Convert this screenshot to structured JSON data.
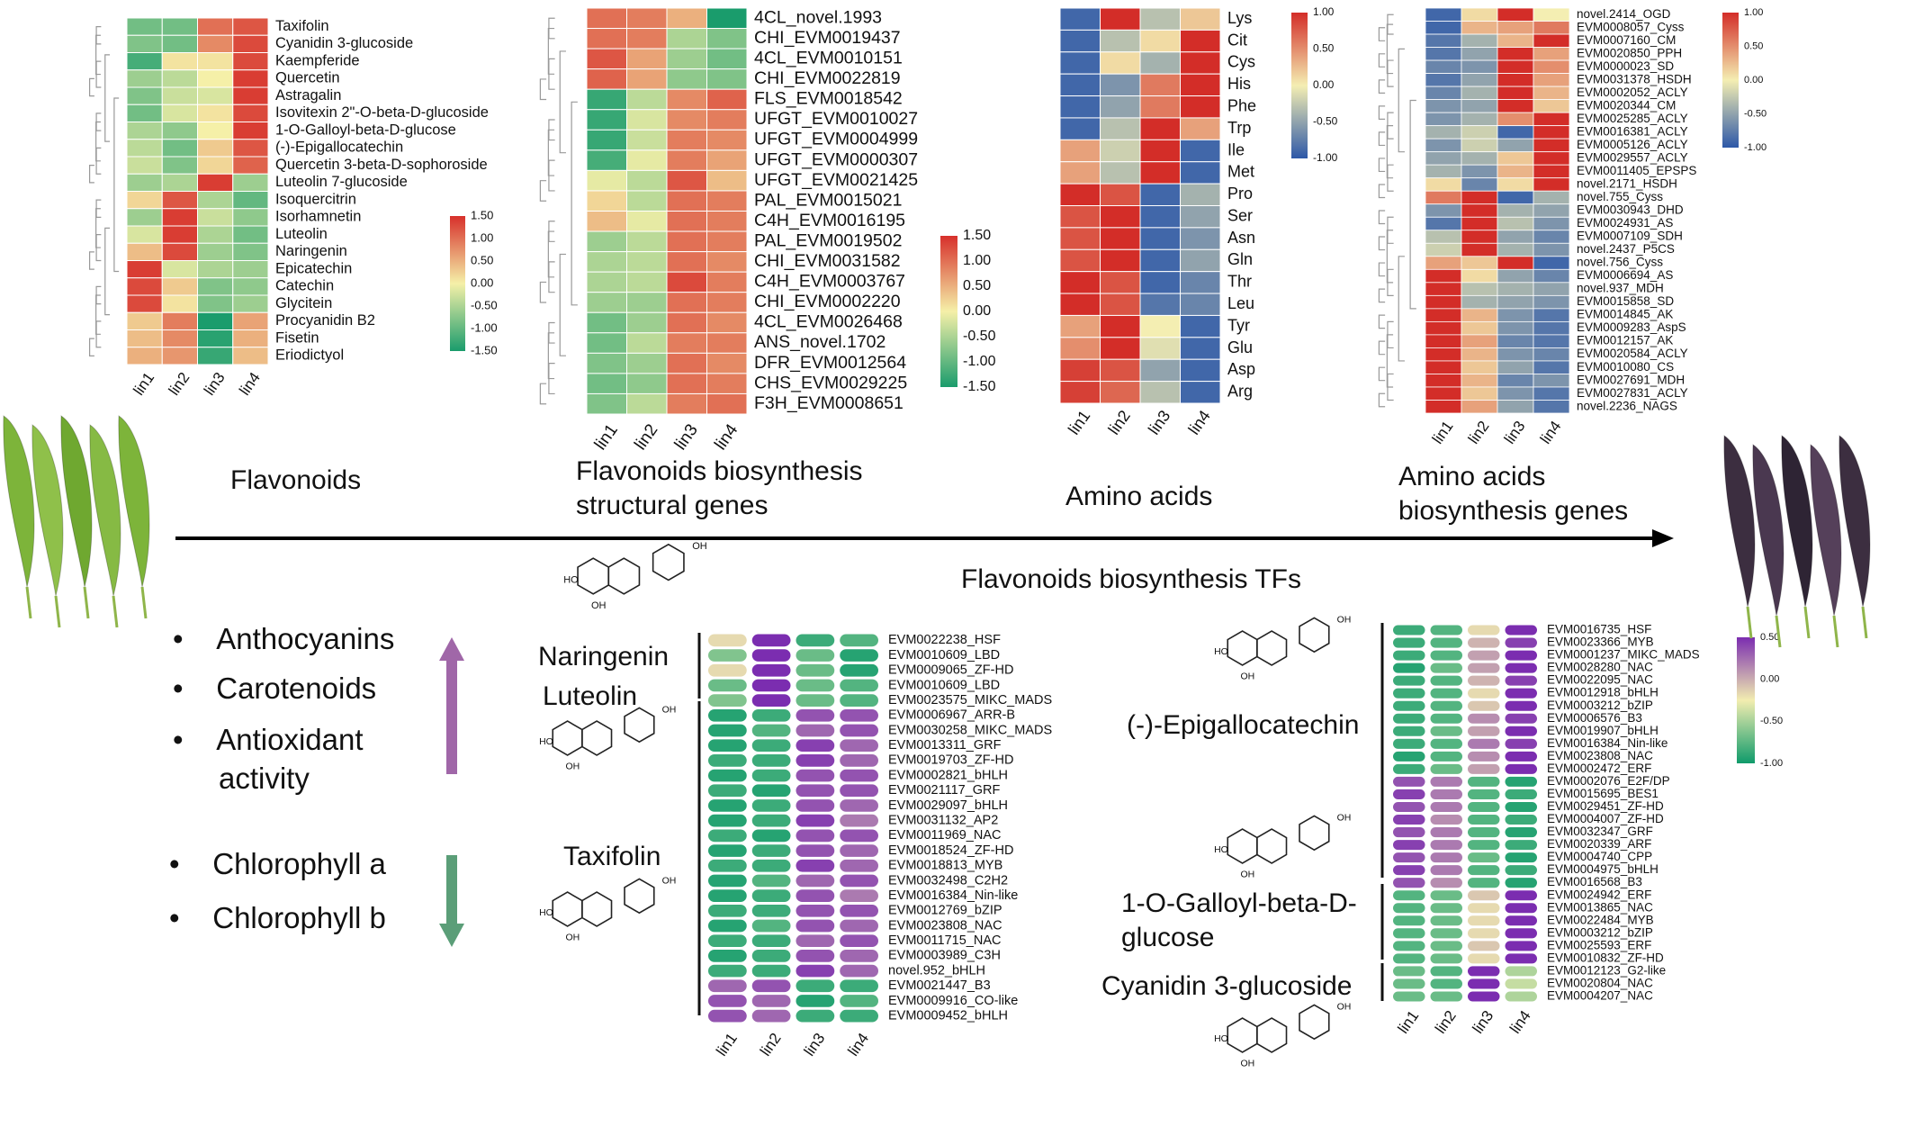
{
  "figure": {
    "samples": [
      "lin1",
      "lin2",
      "lin3",
      "lin4"
    ],
    "arrow_colors": {
      "up": "#a067a8",
      "down": "#5b9e78"
    },
    "palettes": {
      "green_red": [
        "#1a9c6c",
        "#f5f0a8",
        "#d7302b"
      ],
      "blue_red": [
        "#2d58a8",
        "#f4eeb2",
        "#d32d28"
      ],
      "green_purple": [
        "#0f9b6b",
        "#f2edb0",
        "#7b2db0"
      ]
    }
  },
  "captions": {
    "flavonoids": "Flavonoids",
    "structural_genes_line1": "Flavonoids biosynthesis",
    "structural_genes_line2": "structural genes",
    "amino_acids": "Amino acids",
    "aa_genes_line1": "Amino acids",
    "aa_genes_line2": "biosynthesis genes",
    "tfs": "Flavonoids biosynthesis TFs"
  },
  "traits_up": [
    "Anthocyanins",
    "Carotenoids",
    "Antioxidant",
    "activity"
  ],
  "traits_down": [
    "Chlorophyll a",
    "Chlorophyll b"
  ],
  "molecules": {
    "naringenin": "Naringenin",
    "luteolin": "Luteolin",
    "taxifolin": "Taxifolin",
    "epigallocatechin": "(-)-Epigallocatechin",
    "galloyl_line1": "1-O-Galloyl-beta-D-",
    "galloyl_line2": "glucose",
    "cyanidin": "Cyanidin 3-glucoside"
  },
  "chart_data": [
    {
      "type": "heatmap",
      "id": "flavonoids",
      "title": "Flavonoids",
      "columns": [
        "lin1",
        "lin2",
        "lin3",
        "lin4"
      ],
      "rows": [
        "Taxifolin",
        "Cyanidin 3-glucoside",
        "Kaempferide",
        "Quercetin",
        "Astragalin",
        "Isovitexin 2\"-O-beta-D-glucoside",
        "1-O-Galloyl-beta-D-glucose",
        "(-)-Epigallocatechin",
        "Quercetin 3-beta-D-sophoroside",
        "Luteolin 7-glucoside",
        "Isoquercitrin",
        "Isorhamnetin",
        "Luteolin",
        "Naringenin",
        "Epicatechin",
        "Catechin",
        "Glycitein",
        "Procyanidin B2",
        "Fisetin",
        "Eriodictyol"
      ],
      "values": [
        [
          -0.9,
          -0.9,
          1.0,
          1.2
        ],
        [
          -0.8,
          -0.9,
          0.8,
          1.3
        ],
        [
          -1.2,
          0.1,
          0.1,
          1.3
        ],
        [
          -0.6,
          -0.4,
          0.0,
          1.4
        ],
        [
          -0.8,
          -0.3,
          -0.2,
          1.4
        ],
        [
          -0.9,
          -0.2,
          0.1,
          1.3
        ],
        [
          -0.5,
          -0.7,
          0.0,
          1.4
        ],
        [
          -0.4,
          -0.9,
          0.3,
          1.2
        ],
        [
          -0.3,
          -0.8,
          0.2,
          1.1
        ],
        [
          -0.6,
          -0.5,
          1.4,
          -0.6
        ],
        [
          0.2,
          1.2,
          -0.5,
          -1.0
        ],
        [
          -0.6,
          1.4,
          -0.3,
          -0.7
        ],
        [
          -0.2,
          1.4,
          -0.5,
          -0.9
        ],
        [
          0.4,
          1.3,
          -0.6,
          -0.8
        ],
        [
          1.4,
          -0.2,
          -0.5,
          -0.6
        ],
        [
          1.3,
          0.3,
          -0.8,
          -0.7
        ],
        [
          1.3,
          0.1,
          -0.8,
          -0.6
        ],
        [
          0.3,
          0.9,
          -1.5,
          0.6
        ],
        [
          0.4,
          0.8,
          -1.4,
          0.5
        ],
        [
          0.5,
          0.7,
          -1.3,
          0.4
        ]
      ],
      "scale": {
        "min": -1.5,
        "max": 1.5,
        "ticks": [
          "1.50",
          "1.00",
          "0.50",
          "0.00",
          "-0.50",
          "-1.00",
          "-1.50"
        ]
      }
    },
    {
      "type": "heatmap",
      "id": "structural_genes",
      "title": "Flavonoids biosynthesis structural genes",
      "columns": [
        "lin1",
        "lin2",
        "lin3",
        "lin4"
      ],
      "rows": [
        "4CL_novel.1993",
        "CHI_EVM0019437",
        "4CL_EVM0010151",
        "CHI_EVM0022819",
        "FLS_EVM0018542",
        "UFGT_EVM0010027",
        "UFGT_EVM0004999",
        "UFGT_EVM0000307",
        "UFGT_EVM0021425",
        "PAL_EVM0015021",
        "C4H_EVM0016195",
        "PAL_EVM0019502",
        "CHI_EVM0031582",
        "C4H_EVM0003767",
        "CHI_EVM0002220",
        "4CL_EVM0026468",
        "ANS_novel.1702",
        "DFR_EVM0012564",
        "CHS_EVM0029225",
        "F3H_EVM0008651"
      ],
      "values": [
        [
          1.0,
          0.9,
          0.5,
          -1.5
        ],
        [
          1.0,
          0.9,
          -0.5,
          -0.8
        ],
        [
          1.2,
          0.6,
          -0.6,
          -0.9
        ],
        [
          1.1,
          0.6,
          -0.7,
          -0.8
        ],
        [
          -1.3,
          -0.4,
          0.8,
          1.1
        ],
        [
          -1.3,
          -0.2,
          0.8,
          0.9
        ],
        [
          -1.3,
          -0.3,
          0.9,
          0.8
        ],
        [
          -1.2,
          -0.1,
          0.9,
          0.6
        ],
        [
          -0.1,
          -0.4,
          1.2,
          0.4
        ],
        [
          0.2,
          -0.4,
          1.0,
          0.9
        ],
        [
          0.4,
          -0.1,
          1.0,
          0.9
        ],
        [
          -0.6,
          -0.4,
          1.0,
          0.9
        ],
        [
          -0.5,
          -0.4,
          1.0,
          0.8
        ],
        [
          -0.5,
          -0.4,
          1.3,
          0.9
        ],
        [
          -0.6,
          -0.6,
          1.0,
          0.9
        ],
        [
          -0.9,
          -0.6,
          1.0,
          0.8
        ],
        [
          -0.9,
          -0.4,
          0.9,
          0.9
        ],
        [
          -0.8,
          -0.6,
          1.0,
          0.8
        ],
        [
          -0.9,
          -0.7,
          1.0,
          0.9
        ],
        [
          -0.8,
          -0.4,
          0.9,
          1.0
        ]
      ],
      "scale": {
        "min": -1.5,
        "max": 1.5,
        "ticks": [
          "1.50",
          "1.00",
          "0.50",
          "0.00",
          "-0.50",
          "-1.00",
          "-1.50"
        ]
      }
    },
    {
      "type": "heatmap",
      "id": "amino_acids",
      "title": "Amino acids",
      "columns": [
        "lin1",
        "lin2",
        "lin3",
        "lin4"
      ],
      "rows": [
        "Lys",
        "Cit",
        "Cys",
        "His",
        "Phe",
        "Trp",
        "Ile",
        "Met",
        "Pro",
        "Ser",
        "Asn",
        "Gln",
        "Thr",
        "Leu",
        "Tyr",
        "Glu",
        "Asp",
        "Arg"
      ],
      "values": [
        [
          -0.9,
          1.0,
          -0.3,
          0.2
        ],
        [
          -0.9,
          -0.3,
          0.1,
          1.0
        ],
        [
          -0.9,
          0.1,
          -0.4,
          1.0
        ],
        [
          -0.9,
          -0.6,
          0.6,
          1.0
        ],
        [
          -0.9,
          -0.5,
          0.6,
          1.0
        ],
        [
          -0.9,
          -0.3,
          1.0,
          0.4
        ],
        [
          0.4,
          -0.2,
          1.0,
          -0.9
        ],
        [
          0.4,
          -0.3,
          1.0,
          -0.9
        ],
        [
          1.0,
          0.8,
          -0.9,
          -0.4
        ],
        [
          0.8,
          1.0,
          -0.9,
          -0.5
        ],
        [
          0.8,
          1.0,
          -0.9,
          -0.6
        ],
        [
          0.8,
          1.0,
          -0.9,
          -0.5
        ],
        [
          1.0,
          0.8,
          -0.9,
          -0.7
        ],
        [
          1.0,
          0.8,
          -0.8,
          -0.7
        ],
        [
          0.4,
          1.0,
          0.0,
          -0.9
        ],
        [
          0.5,
          1.0,
          -0.1,
          -0.9
        ],
        [
          0.9,
          0.8,
          -0.5,
          -0.9
        ],
        [
          0.9,
          0.7,
          -0.3,
          -0.9
        ]
      ],
      "scale": {
        "min": -1.0,
        "max": 1.0,
        "ticks": [
          "1.00",
          "0.50",
          "0.00",
          "-0.50",
          "-1.00"
        ]
      }
    },
    {
      "type": "heatmap",
      "id": "aa_genes",
      "title": "Amino acids biosynthesis genes",
      "columns": [
        "lin1",
        "lin2",
        "lin3",
        "lin4"
      ],
      "rows": [
        "novel.2414_OGD",
        "EVM0008057_Cyss",
        "EVM0007160_CM",
        "EVM0020850_PPH",
        "EVM0000023_SD",
        "EVM0031378_HSDH",
        "EVM0002052_ACLY",
        "EVM0020344_CM",
        "EVM0025285_ACLY",
        "EVM0016381_ACLY",
        "EVM0005126_ACLY",
        "EVM0029557_ACLY",
        "EVM0011405_EPSPS",
        "novel.2171_HSDH",
        "novel.755_Cyss",
        "EVM0030943_DHD",
        "EVM0024931_AS",
        "EVM0007109_SDH",
        "novel.2437_P5CS",
        "novel.756_Cyss",
        "EVM0006694_AS",
        "novel.937_MDH",
        "EVM0015858_SD",
        "EVM0014845_AK",
        "EVM0009283_AspS",
        "EVM0012157_AK",
        "EVM0020584_ACLY",
        "EVM0010080_CS",
        "EVM0027691_MDH",
        "EVM0027831_ACLY",
        "novel.2236_NAGS"
      ],
      "values": [
        [
          -0.9,
          0.1,
          1.0,
          0.0
        ],
        [
          -0.9,
          0.3,
          0.4,
          0.6
        ],
        [
          -0.8,
          -0.4,
          0.3,
          1.0
        ],
        [
          -0.8,
          -0.5,
          1.0,
          0.4
        ],
        [
          -0.7,
          -0.6,
          1.0,
          0.5
        ],
        [
          -0.8,
          -0.5,
          1.0,
          0.4
        ],
        [
          -0.7,
          -0.4,
          1.0,
          0.3
        ],
        [
          -0.6,
          -0.5,
          1.0,
          0.2
        ],
        [
          -0.6,
          -0.4,
          0.5,
          1.0
        ],
        [
          -0.4,
          -0.2,
          -0.9,
          1.0
        ],
        [
          -0.6,
          -0.2,
          -0.5,
          1.0
        ],
        [
          -0.5,
          -0.4,
          0.2,
          1.0
        ],
        [
          -0.4,
          -0.6,
          0.3,
          1.0
        ],
        [
          0.1,
          -0.7,
          0.1,
          1.0
        ],
        [
          0.6,
          1.0,
          -0.9,
          -0.4
        ],
        [
          -0.6,
          1.0,
          -0.4,
          -0.5
        ],
        [
          -0.8,
          1.0,
          -0.3,
          -0.6
        ],
        [
          -0.3,
          1.0,
          -0.5,
          -0.7
        ],
        [
          -0.2,
          1.0,
          -0.4,
          -0.6
        ],
        [
          0.4,
          0.2,
          1.0,
          -0.9
        ],
        [
          1.0,
          0.1,
          -0.5,
          -0.7
        ],
        [
          1.0,
          -0.3,
          -0.4,
          -0.5
        ],
        [
          1.0,
          -0.4,
          -0.5,
          -0.6
        ],
        [
          1.0,
          0.3,
          -0.6,
          -0.8
        ],
        [
          1.0,
          0.2,
          -0.6,
          -0.8
        ],
        [
          1.0,
          0.4,
          -0.7,
          -0.8
        ],
        [
          1.0,
          0.3,
          -0.6,
          -0.7
        ],
        [
          1.0,
          0.2,
          -0.5,
          -0.8
        ],
        [
          1.0,
          0.3,
          -0.7,
          -0.6
        ],
        [
          1.0,
          0.2,
          -0.6,
          -0.8
        ],
        [
          1.0,
          0.4,
          -0.5,
          -0.8
        ]
      ],
      "scale": {
        "min": -1.0,
        "max": 1.0,
        "ticks": [
          "1.00",
          "0.50",
          "0.00",
          "-0.50",
          "-1.00"
        ]
      }
    },
    {
      "type": "heatmap",
      "id": "tfs_left",
      "title": "Flavonoids biosynthesis TFs",
      "columns": [
        "lin1",
        "lin2",
        "lin3",
        "lin4"
      ],
      "rows": [
        "EVM0022238_HSF",
        "EVM0010609_LBD",
        "EVM0009065_ZF-HD",
        "EVM0010609_LBD",
        "EVM0023575_MIKC_MADS",
        "EVM0006967_ARR-B",
        "EVM0030258_MIKC_MADS",
        "EVM0013311_GRF",
        "EVM0019703_ZF-HD",
        "EVM0002821_bHLH",
        "EVM0021117_GRF",
        "EVM0029097_bHLH",
        "EVM0031132_AP2",
        "EVM0011969_NAC",
        "EVM0018524_ZF-HD",
        "EVM0018813_MYB",
        "EVM0032498_C2H2",
        "EVM0016384_Nin-like",
        "EVM0012769_bZIP",
        "EVM0023808_NAC",
        "EVM0011715_NAC",
        "EVM0003989_C3H",
        "novel.952_bHLH",
        "EVM0021447_B3",
        "EVM0009916_CO-like",
        "EVM0009452_bHLH"
      ],
      "values": [
        [
          0.1,
          1.0,
          -0.8,
          -0.7
        ],
        [
          -0.5,
          1.0,
          -0.6,
          -0.9
        ],
        [
          0.1,
          1.0,
          -0.6,
          -0.9
        ],
        [
          -0.6,
          1.0,
          -0.6,
          -0.7
        ],
        [
          -0.5,
          1.0,
          -0.6,
          -0.7
        ],
        [
          -0.9,
          -0.8,
          0.8,
          0.8
        ],
        [
          -0.9,
          -0.7,
          0.7,
          0.8
        ],
        [
          -0.9,
          -0.8,
          0.9,
          0.7
        ],
        [
          -0.8,
          -0.8,
          0.9,
          0.7
        ],
        [
          -0.9,
          -0.8,
          0.8,
          0.8
        ],
        [
          -0.8,
          -0.9,
          0.8,
          0.8
        ],
        [
          -0.9,
          -0.8,
          0.8,
          0.7
        ],
        [
          -0.9,
          -0.8,
          0.9,
          0.6
        ],
        [
          -0.8,
          -0.9,
          0.8,
          0.8
        ],
        [
          -0.9,
          -0.8,
          0.8,
          0.7
        ],
        [
          -0.8,
          -0.8,
          0.9,
          0.7
        ],
        [
          -0.9,
          -0.7,
          0.7,
          0.8
        ],
        [
          -0.9,
          -0.8,
          0.8,
          0.6
        ],
        [
          -0.8,
          -0.8,
          0.8,
          0.8
        ],
        [
          -0.9,
          -0.7,
          0.8,
          0.7
        ],
        [
          -0.8,
          -0.8,
          0.7,
          0.8
        ],
        [
          -0.9,
          -0.8,
          0.8,
          0.7
        ],
        [
          -0.8,
          -0.8,
          0.9,
          0.7
        ],
        [
          0.7,
          0.8,
          -0.8,
          -0.8
        ],
        [
          0.8,
          0.7,
          -0.9,
          -0.7
        ],
        [
          0.8,
          0.7,
          -0.8,
          -0.8
        ]
      ],
      "scale": {
        "min": -1.0,
        "max": 1.0
      }
    },
    {
      "type": "heatmap",
      "id": "tfs_right",
      "title": "Flavonoids biosynthesis TFs",
      "columns": [
        "lin1",
        "lin2",
        "lin3",
        "lin4"
      ],
      "rows": [
        "EVM0016735_HSF",
        "EVM0023366_MYB",
        "EVM0001237_MIKC_MADS",
        "EVM0028280_NAC",
        "EVM0022095_NAC",
        "EVM0012918_bHLH",
        "EVM0003212_bZIP",
        "EVM0006576_B3",
        "EVM0019907_bHLH",
        "EVM0016384_Nin-like",
        "EVM0023808_NAC",
        "EVM0002472_ERF",
        "EVM0002076_E2F/DP",
        "EVM0015695_BES1",
        "EVM0029451_ZF-HD",
        "EVM0004007_ZF-HD",
        "EVM0032347_GRF",
        "EVM0020339_ARF",
        "EVM0004740_CPP",
        "EVM0004975_bHLH",
        "EVM0016568_B3",
        "EVM0024942_ERF",
        "EVM0013865_NAC",
        "EVM0022484_MYB",
        "EVM0003212_bZIP",
        "EVM0025593_ERF",
        "EVM0010832_ZF-HD",
        "EVM0012123_G2-like",
        "EVM0020804_NAC",
        "EVM0004207_NAC"
      ],
      "values": [
        [
          -0.8,
          -0.7,
          0.1,
          1.0
        ],
        [
          -0.8,
          -0.7,
          0.3,
          0.9
        ],
        [
          -0.8,
          -0.7,
          0.4,
          1.0
        ],
        [
          -0.9,
          -0.6,
          0.4,
          1.0
        ],
        [
          -0.8,
          -0.7,
          0.3,
          0.9
        ],
        [
          -0.8,
          -0.7,
          0.1,
          1.0
        ],
        [
          -0.8,
          -0.7,
          0.2,
          1.0
        ],
        [
          -0.8,
          -0.7,
          0.5,
          0.9
        ],
        [
          -0.8,
          -0.6,
          0.4,
          1.0
        ],
        [
          -0.8,
          -0.7,
          0.6,
          0.9
        ],
        [
          -0.9,
          -0.7,
          0.5,
          1.0
        ],
        [
          -0.8,
          -0.6,
          0.4,
          1.0
        ],
        [
          0.8,
          0.6,
          -0.7,
          -0.9
        ],
        [
          0.9,
          0.6,
          -0.7,
          -0.8
        ],
        [
          0.8,
          0.6,
          -0.7,
          -0.9
        ],
        [
          0.9,
          0.5,
          -0.7,
          -0.8
        ],
        [
          0.8,
          0.6,
          -0.7,
          -0.9
        ],
        [
          0.9,
          0.6,
          -0.7,
          -0.8
        ],
        [
          0.8,
          0.6,
          -0.6,
          -0.9
        ],
        [
          0.9,
          0.6,
          -0.7,
          -0.8
        ],
        [
          0.8,
          0.5,
          -0.7,
          -0.9
        ],
        [
          -0.7,
          -0.6,
          0.2,
          1.0
        ],
        [
          -0.7,
          -0.6,
          0.1,
          1.0
        ],
        [
          -0.7,
          -0.6,
          0.1,
          1.0
        ],
        [
          -0.7,
          -0.6,
          0.1,
          1.0
        ],
        [
          -0.7,
          -0.6,
          0.2,
          1.0
        ],
        [
          -0.7,
          -0.6,
          0.1,
          1.0
        ],
        [
          -0.6,
          -0.7,
          1.0,
          -0.3
        ],
        [
          -0.6,
          -0.7,
          1.0,
          -0.2
        ],
        [
          -0.6,
          -0.6,
          1.0,
          -0.3
        ]
      ],
      "scale": {
        "min": -1.0,
        "max": 1.0,
        "ticks": [
          "0.50",
          "0.00",
          "-0.50",
          "-1.00"
        ]
      }
    }
  ]
}
